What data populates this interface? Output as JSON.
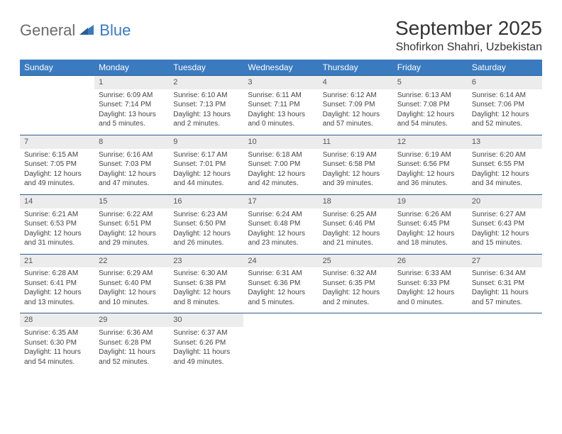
{
  "logo": {
    "part1": "General",
    "part2": "Blue"
  },
  "title": "September 2025",
  "location": "Shofirkon Shahri, Uzbekistan",
  "colors": {
    "header_bg": "#3a7abf",
    "header_text": "#ffffff",
    "daynum_bg": "#ececec",
    "row_border": "#2f5e8c",
    "text": "#444444",
    "logo_gray": "#6b6b6b",
    "logo_blue": "#3a7abf"
  },
  "typography": {
    "title_fontsize": 28,
    "location_fontsize": 16,
    "header_fontsize": 12,
    "daynum_fontsize": 11,
    "cell_fontsize": 10
  },
  "weekdays": [
    "Sunday",
    "Monday",
    "Tuesday",
    "Wednesday",
    "Thursday",
    "Friday",
    "Saturday"
  ],
  "weeks": [
    [
      null,
      {
        "n": "1",
        "sr": "Sunrise: 6:09 AM",
        "ss": "Sunset: 7:14 PM",
        "d1": "Daylight: 13 hours",
        "d2": "and 5 minutes."
      },
      {
        "n": "2",
        "sr": "Sunrise: 6:10 AM",
        "ss": "Sunset: 7:13 PM",
        "d1": "Daylight: 13 hours",
        "d2": "and 2 minutes."
      },
      {
        "n": "3",
        "sr": "Sunrise: 6:11 AM",
        "ss": "Sunset: 7:11 PM",
        "d1": "Daylight: 13 hours",
        "d2": "and 0 minutes."
      },
      {
        "n": "4",
        "sr": "Sunrise: 6:12 AM",
        "ss": "Sunset: 7:09 PM",
        "d1": "Daylight: 12 hours",
        "d2": "and 57 minutes."
      },
      {
        "n": "5",
        "sr": "Sunrise: 6:13 AM",
        "ss": "Sunset: 7:08 PM",
        "d1": "Daylight: 12 hours",
        "d2": "and 54 minutes."
      },
      {
        "n": "6",
        "sr": "Sunrise: 6:14 AM",
        "ss": "Sunset: 7:06 PM",
        "d1": "Daylight: 12 hours",
        "d2": "and 52 minutes."
      }
    ],
    [
      {
        "n": "7",
        "sr": "Sunrise: 6:15 AM",
        "ss": "Sunset: 7:05 PM",
        "d1": "Daylight: 12 hours",
        "d2": "and 49 minutes."
      },
      {
        "n": "8",
        "sr": "Sunrise: 6:16 AM",
        "ss": "Sunset: 7:03 PM",
        "d1": "Daylight: 12 hours",
        "d2": "and 47 minutes."
      },
      {
        "n": "9",
        "sr": "Sunrise: 6:17 AM",
        "ss": "Sunset: 7:01 PM",
        "d1": "Daylight: 12 hours",
        "d2": "and 44 minutes."
      },
      {
        "n": "10",
        "sr": "Sunrise: 6:18 AM",
        "ss": "Sunset: 7:00 PM",
        "d1": "Daylight: 12 hours",
        "d2": "and 42 minutes."
      },
      {
        "n": "11",
        "sr": "Sunrise: 6:19 AM",
        "ss": "Sunset: 6:58 PM",
        "d1": "Daylight: 12 hours",
        "d2": "and 39 minutes."
      },
      {
        "n": "12",
        "sr": "Sunrise: 6:19 AM",
        "ss": "Sunset: 6:56 PM",
        "d1": "Daylight: 12 hours",
        "d2": "and 36 minutes."
      },
      {
        "n": "13",
        "sr": "Sunrise: 6:20 AM",
        "ss": "Sunset: 6:55 PM",
        "d1": "Daylight: 12 hours",
        "d2": "and 34 minutes."
      }
    ],
    [
      {
        "n": "14",
        "sr": "Sunrise: 6:21 AM",
        "ss": "Sunset: 6:53 PM",
        "d1": "Daylight: 12 hours",
        "d2": "and 31 minutes."
      },
      {
        "n": "15",
        "sr": "Sunrise: 6:22 AM",
        "ss": "Sunset: 6:51 PM",
        "d1": "Daylight: 12 hours",
        "d2": "and 29 minutes."
      },
      {
        "n": "16",
        "sr": "Sunrise: 6:23 AM",
        "ss": "Sunset: 6:50 PM",
        "d1": "Daylight: 12 hours",
        "d2": "and 26 minutes."
      },
      {
        "n": "17",
        "sr": "Sunrise: 6:24 AM",
        "ss": "Sunset: 6:48 PM",
        "d1": "Daylight: 12 hours",
        "d2": "and 23 minutes."
      },
      {
        "n": "18",
        "sr": "Sunrise: 6:25 AM",
        "ss": "Sunset: 6:46 PM",
        "d1": "Daylight: 12 hours",
        "d2": "and 21 minutes."
      },
      {
        "n": "19",
        "sr": "Sunrise: 6:26 AM",
        "ss": "Sunset: 6:45 PM",
        "d1": "Daylight: 12 hours",
        "d2": "and 18 minutes."
      },
      {
        "n": "20",
        "sr": "Sunrise: 6:27 AM",
        "ss": "Sunset: 6:43 PM",
        "d1": "Daylight: 12 hours",
        "d2": "and 15 minutes."
      }
    ],
    [
      {
        "n": "21",
        "sr": "Sunrise: 6:28 AM",
        "ss": "Sunset: 6:41 PM",
        "d1": "Daylight: 12 hours",
        "d2": "and 13 minutes."
      },
      {
        "n": "22",
        "sr": "Sunrise: 6:29 AM",
        "ss": "Sunset: 6:40 PM",
        "d1": "Daylight: 12 hours",
        "d2": "and 10 minutes."
      },
      {
        "n": "23",
        "sr": "Sunrise: 6:30 AM",
        "ss": "Sunset: 6:38 PM",
        "d1": "Daylight: 12 hours",
        "d2": "and 8 minutes."
      },
      {
        "n": "24",
        "sr": "Sunrise: 6:31 AM",
        "ss": "Sunset: 6:36 PM",
        "d1": "Daylight: 12 hours",
        "d2": "and 5 minutes."
      },
      {
        "n": "25",
        "sr": "Sunrise: 6:32 AM",
        "ss": "Sunset: 6:35 PM",
        "d1": "Daylight: 12 hours",
        "d2": "and 2 minutes."
      },
      {
        "n": "26",
        "sr": "Sunrise: 6:33 AM",
        "ss": "Sunset: 6:33 PM",
        "d1": "Daylight: 12 hours",
        "d2": "and 0 minutes."
      },
      {
        "n": "27",
        "sr": "Sunrise: 6:34 AM",
        "ss": "Sunset: 6:31 PM",
        "d1": "Daylight: 11 hours",
        "d2": "and 57 minutes."
      }
    ],
    [
      {
        "n": "28",
        "sr": "Sunrise: 6:35 AM",
        "ss": "Sunset: 6:30 PM",
        "d1": "Daylight: 11 hours",
        "d2": "and 54 minutes."
      },
      {
        "n": "29",
        "sr": "Sunrise: 6:36 AM",
        "ss": "Sunset: 6:28 PM",
        "d1": "Daylight: 11 hours",
        "d2": "and 52 minutes."
      },
      {
        "n": "30",
        "sr": "Sunrise: 6:37 AM",
        "ss": "Sunset: 6:26 PM",
        "d1": "Daylight: 11 hours",
        "d2": "and 49 minutes."
      },
      null,
      null,
      null,
      null
    ]
  ]
}
